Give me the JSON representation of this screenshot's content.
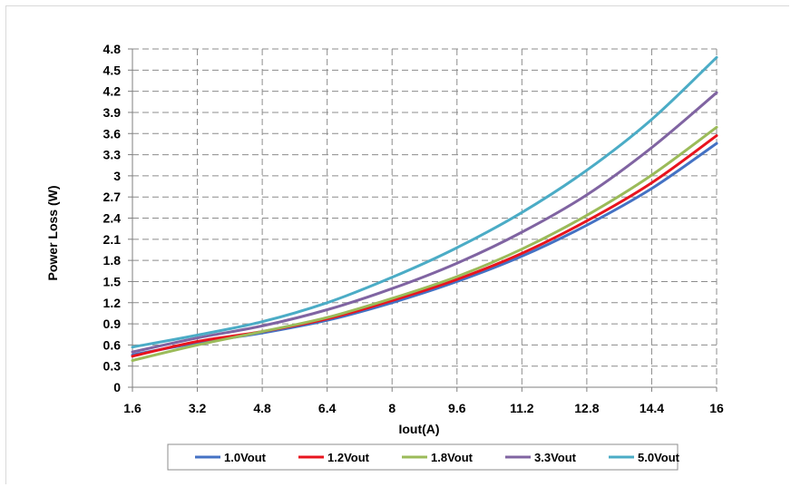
{
  "chart_data": {
    "type": "line",
    "xlabel": "Iout(A)",
    "ylabel": "Power Loss (W)",
    "xlim": [
      1.6,
      16
    ],
    "ylim": [
      0,
      4.8
    ],
    "x_ticks": [
      "1.6",
      "3.2",
      "4.8",
      "6.4",
      "8",
      "9.6",
      "11.2",
      "12.8",
      "14.4",
      "16"
    ],
    "y_ticks": [
      "0",
      "0.3",
      "0.6",
      "0.9",
      "1.2",
      "1.5",
      "1.8",
      "2.1",
      "2.4",
      "2.7",
      "3",
      "3.3",
      "3.6",
      "3.9",
      "4.2",
      "4.5",
      "4.8"
    ],
    "grid": true,
    "grid_style": "dashed",
    "legend_position": "bottom",
    "x": [
      1.6,
      3.2,
      4.8,
      6.4,
      8,
      9.6,
      11.2,
      12.8,
      14.4,
      16
    ],
    "series": [
      {
        "name": "1.0Vout",
        "color": "#4472C4",
        "values": [
          0.46,
          0.63,
          0.77,
          0.95,
          1.2,
          1.5,
          1.86,
          2.3,
          2.82,
          3.46
        ]
      },
      {
        "name": "1.2Vout",
        "color": "#E8141E",
        "values": [
          0.44,
          0.65,
          0.79,
          0.97,
          1.23,
          1.53,
          1.9,
          2.36,
          2.9,
          3.57
        ]
      },
      {
        "name": "1.8Vout",
        "color": "#9BBB59",
        "values": [
          0.38,
          0.6,
          0.79,
          0.99,
          1.26,
          1.57,
          1.96,
          2.44,
          3.01,
          3.69
        ]
      },
      {
        "name": "3.3Vout",
        "color": "#8064A2",
        "values": [
          0.5,
          0.7,
          0.87,
          1.1,
          1.4,
          1.76,
          2.2,
          2.73,
          3.4,
          4.18
        ]
      },
      {
        "name": "5.0Vout",
        "color": "#4BACC6",
        "values": [
          0.57,
          0.74,
          0.93,
          1.2,
          1.56,
          1.98,
          2.48,
          3.08,
          3.8,
          4.68
        ]
      }
    ]
  }
}
